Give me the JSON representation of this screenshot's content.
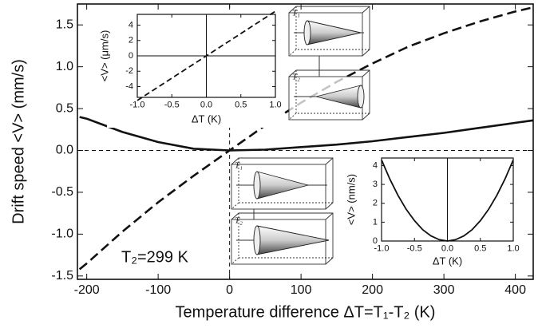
{
  "chart_data": [
    {
      "type": "line",
      "x_label": "Temperature difference ΔT=T₁-T₂ (K)",
      "y_label": "Drift speed <V> (mm/s)",
      "annotations": [
        "T₂=299 K",
        "T₁",
        "T₂",
        "T₁",
        "T₂"
      ],
      "x": [
        -210,
        -200,
        -150,
        -100,
        -50,
        0,
        50,
        100,
        150,
        200,
        250,
        300,
        350,
        400,
        425
      ],
      "series": [
        {
          "color": "#111111",
          "line_style": "solid",
          "values": [
            0.4,
            0.38,
            0.22,
            0.1,
            0.02,
            0.0,
            0.01,
            0.04,
            0.07,
            0.11,
            0.16,
            0.21,
            0.27,
            0.33,
            0.36
          ]
        },
        {
          "color": "#111111",
          "line_style": "dashed",
          "values": [
            -1.42,
            -1.35,
            -0.97,
            -0.62,
            -0.3,
            0.0,
            0.3,
            0.57,
            0.82,
            1.04,
            1.24,
            1.4,
            1.54,
            1.66,
            1.71
          ]
        }
      ],
      "xlim": [
        -213,
        425
      ],
      "ylim": [
        -1.54,
        1.75
      ],
      "xticks": [
        -200,
        -100,
        0,
        100,
        200,
        300,
        400
      ],
      "yticks": [
        -1.5,
        {
          "value": -1.0,
          "label": "-1.0"
        },
        -0.5,
        {
          "value": 0.0,
          "label": "0.0"
        },
        0.5,
        {
          "value": 1.0,
          "label": "1.0"
        },
        1.5
      ]
    },
    {
      "type": "line",
      "x_label": "ΔT (K)",
      "y_label": "<V> (μm/s)",
      "x": [
        -1.0,
        0.0,
        1.0
      ],
      "series": [
        {
          "color": "#111111",
          "line_style": "dashed",
          "values": [
            -5.8,
            0.0,
            5.8
          ]
        }
      ],
      "xlim": [
        -1.0,
        1.0
      ],
      "ylim": [
        -5.4,
        5.4
      ],
      "xticks": [
        {
          "value": -1.0,
          "label": "-1.0"
        },
        -0.5,
        {
          "value": 0.0,
          "label": "0.0"
        },
        0.5,
        {
          "value": 1.0,
          "label": "1.0"
        }
      ],
      "yticks": [
        -4,
        -2,
        0,
        2,
        4
      ]
    },
    {
      "type": "line",
      "x_label": "ΔT (K)",
      "y_label": "<V> (nm/s)",
      "x": [
        -1.0,
        -0.875,
        -0.75,
        -0.625,
        -0.5,
        -0.375,
        -0.25,
        -0.125,
        0.0,
        0.125,
        0.25,
        0.375,
        0.5,
        0.625,
        0.75,
        0.875,
        1.0
      ],
      "series": [
        {
          "color": "#111111",
          "line_style": "solid",
          "values": [
            4.3,
            3.29,
            2.42,
            1.68,
            1.08,
            0.6,
            0.27,
            0.07,
            0.0,
            0.07,
            0.27,
            0.6,
            1.08,
            1.68,
            2.42,
            3.29,
            4.3
          ]
        }
      ],
      "xlim": [
        -1.0,
        1.0
      ],
      "ylim": [
        0,
        4.4
      ],
      "xticks": [
        {
          "value": -1.0,
          "label": "-1.0"
        },
        -0.5,
        {
          "value": 0.0,
          "label": "0.0"
        },
        0.5,
        {
          "value": 1.0,
          "label": "1.0"
        }
      ],
      "yticks": [
        0,
        1,
        2,
        3,
        4
      ]
    }
  ]
}
